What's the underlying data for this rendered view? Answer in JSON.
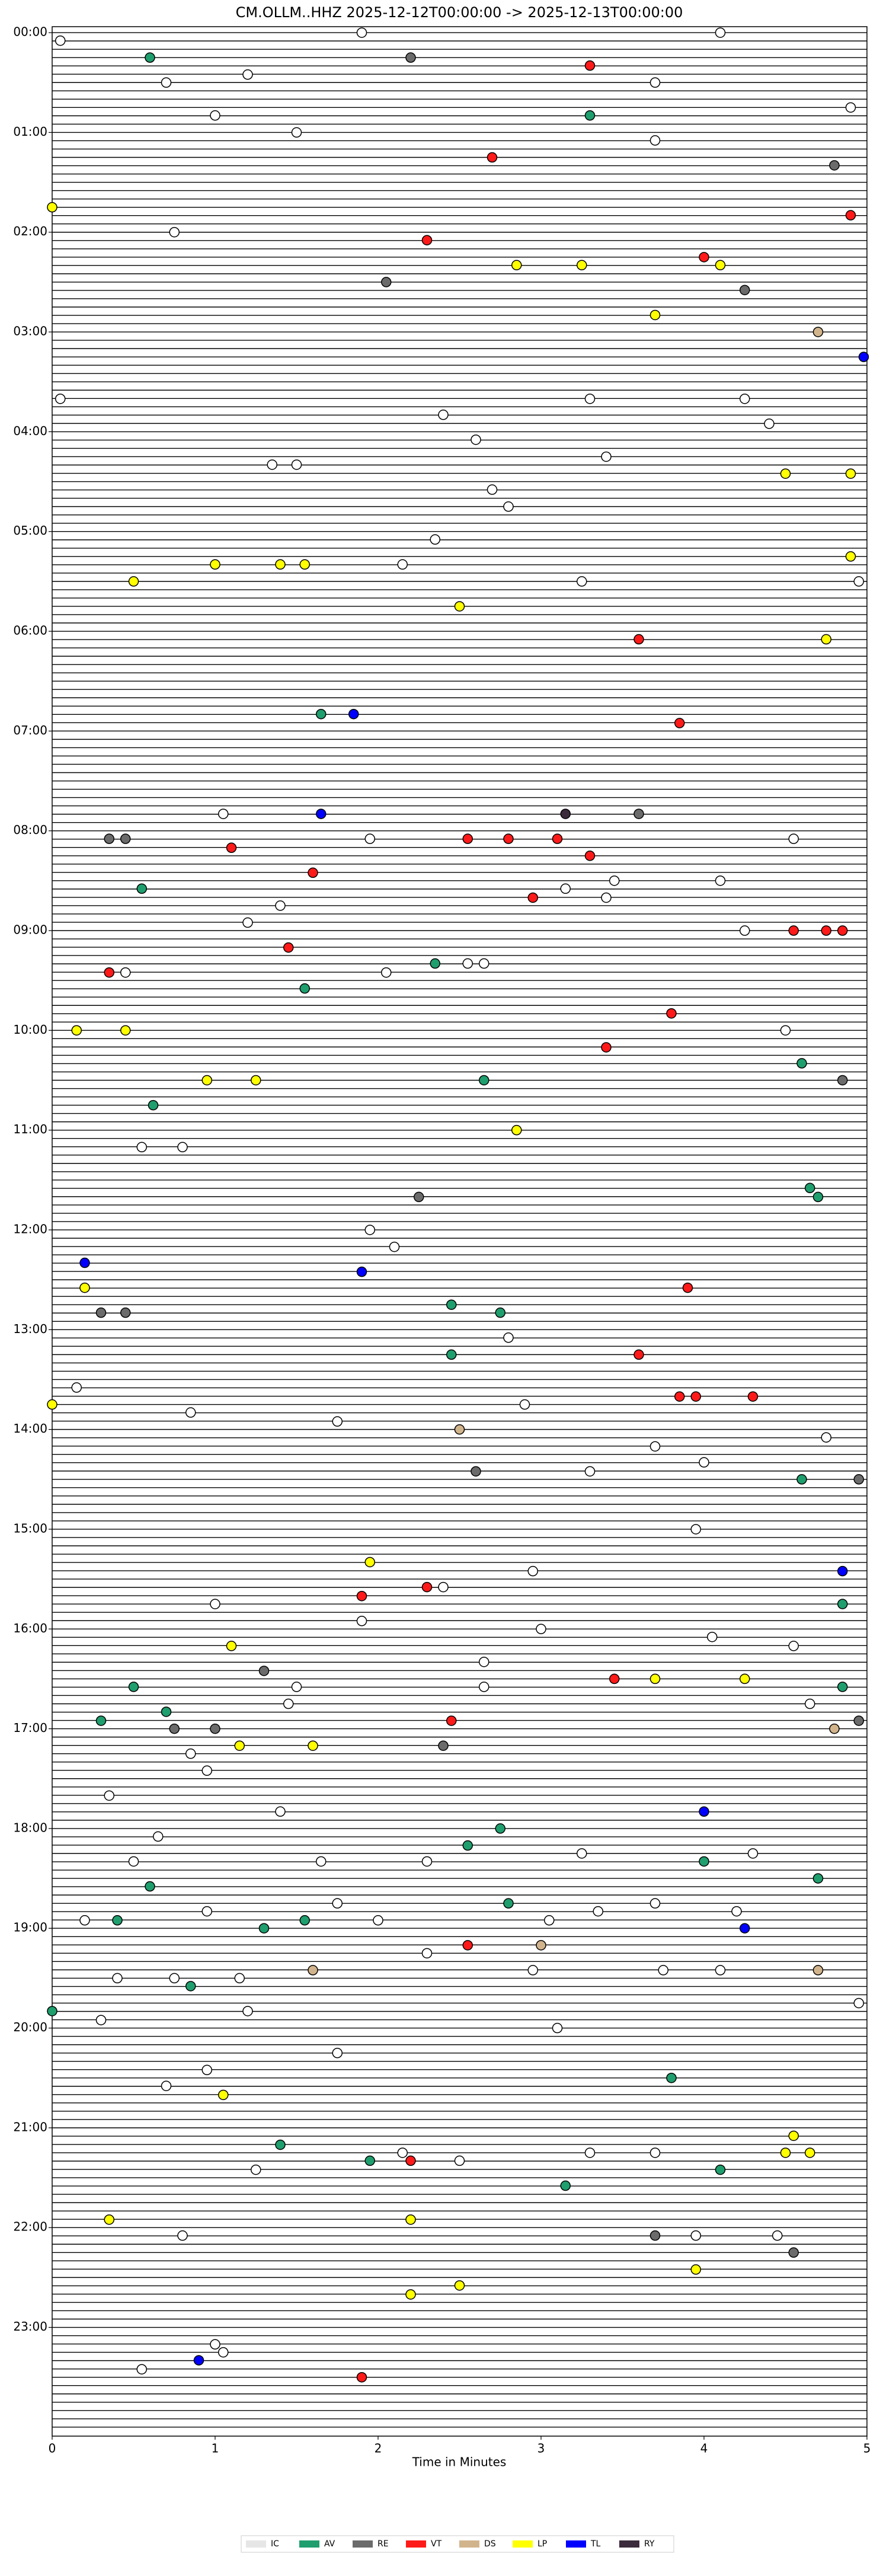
{
  "chart_data": {
    "type": "scatter",
    "title": "CM.OLLM..HHZ  2025-12-12T00:00:00 -> 2025-12-13T00:00:00",
    "xlabel": "Time in Minutes",
    "xlim": [
      0,
      5
    ],
    "xticks": [
      0,
      1,
      2,
      3,
      4,
      5
    ],
    "ylim": [
      -0.06,
      24.09
    ],
    "yticks": [
      {
        "value": 0,
        "label": "00:00"
      },
      {
        "value": 1,
        "label": "01:00"
      },
      {
        "value": 2,
        "label": "02:00"
      },
      {
        "value": 3,
        "label": "03:00"
      },
      {
        "value": 4,
        "label": "04:00"
      },
      {
        "value": 5,
        "label": "05:00"
      },
      {
        "value": 6,
        "label": "06:00"
      },
      {
        "value": 7,
        "label": "07:00"
      },
      {
        "value": 8,
        "label": "08:00"
      },
      {
        "value": 9,
        "label": "09:00"
      },
      {
        "value": 10,
        "label": "10:00"
      },
      {
        "value": 11,
        "label": "11:00"
      },
      {
        "value": 12,
        "label": "12:00"
      },
      {
        "value": 13,
        "label": "13:00"
      },
      {
        "value": 14,
        "label": "14:00"
      },
      {
        "value": 15,
        "label": "15:00"
      },
      {
        "value": 16,
        "label": "16:00"
      },
      {
        "value": 17,
        "label": "17:00"
      },
      {
        "value": 18,
        "label": "18:00"
      },
      {
        "value": 19,
        "label": "19:00"
      },
      {
        "value": 20,
        "label": "20:00"
      },
      {
        "value": 21,
        "label": "21:00"
      },
      {
        "value": 22,
        "label": "22:00"
      },
      {
        "value": 23,
        "label": "23:00"
      }
    ],
    "series": [
      {
        "name": "IC",
        "color": "#e6e6e6",
        "x": [
          0.05,
          1.9,
          4.1,
          0.7,
          1.2,
          3.7,
          1.0,
          1.5,
          3.7,
          4.9,
          0.75,
          2.4,
          3.3,
          0.05,
          4.25,
          4.4,
          2.6,
          1.35,
          1.5,
          3.4,
          2.7,
          2.8,
          2.35,
          2.15,
          3.25,
          4.95,
          1.95,
          1.05,
          4.55,
          3.45,
          4.1,
          3.15,
          3.4,
          1.4,
          1.2,
          4.25,
          2.05,
          2.55,
          2.65,
          0.45,
          4.5,
          0.8,
          0.55,
          2.1,
          1.95,
          2.8,
          0.15,
          0.85,
          1.75,
          2.9,
          3.7,
          4.75,
          3.3,
          4.0,
          3.95,
          2.95,
          1.0,
          2.4,
          1.9,
          3.0,
          4.05,
          4.55,
          2.65,
          1.5,
          2.65,
          4.65,
          1.45,
          0.85,
          0.95,
          1.4,
          0.35,
          0.65,
          0.5,
          1.65,
          2.3,
          3.25,
          4.3,
          0.2,
          0.95,
          1.75,
          2.0,
          3.05,
          3.35,
          3.7,
          4.2,
          2.3,
          2.95,
          3.75,
          4.1,
          0.4,
          0.75,
          1.15,
          4.95,
          0.3,
          1.2,
          1.75,
          0.7,
          0.95,
          3.1,
          2.15,
          3.3,
          3.7,
          2.5,
          1.25,
          0.8,
          3.95,
          4.45,
          1.0,
          1.05,
          0.55
        ],
        "y": [
          0.08,
          0.0,
          0.0,
          0.5,
          0.42,
          0.5,
          0.83,
          1.0,
          1.08,
          0.75,
          2.0,
          3.83,
          3.67,
          3.67,
          3.67,
          3.92,
          4.08,
          4.33,
          4.33,
          4.25,
          4.58,
          4.75,
          5.08,
          5.33,
          5.5,
          5.5,
          8.08,
          7.83,
          8.08,
          8.5,
          8.5,
          8.58,
          8.67,
          8.75,
          8.92,
          9.0,
          9.42,
          9.33,
          9.33,
          9.42,
          10.0,
          11.17,
          11.17,
          12.17,
          12.0,
          13.08,
          13.58,
          13.83,
          13.92,
          13.75,
          14.17,
          14.08,
          14.42,
          14.33,
          15.0,
          15.42,
          15.75,
          15.58,
          15.92,
          16.0,
          16.08,
          16.17,
          16.33,
          16.58,
          16.58,
          16.75,
          16.75,
          17.25,
          17.42,
          17.83,
          17.67,
          18.08,
          18.33,
          18.33,
          18.33,
          18.25,
          18.25,
          18.92,
          18.83,
          18.75,
          18.92,
          18.92,
          18.83,
          18.75,
          18.83,
          19.25,
          19.42,
          19.42,
          19.42,
          19.5,
          19.5,
          19.5,
          19.75,
          19.92,
          19.83,
          20.25,
          20.58,
          20.42,
          20.0,
          21.25,
          21.25,
          21.25,
          21.33,
          21.42,
          22.08,
          22.08,
          22.08,
          23.17,
          23.25,
          23.42
        ]
      },
      {
        "name": "AV",
        "color": "#1f9e6e",
        "x": [
          0.6,
          3.3,
          1.65,
          0.55,
          1.55,
          2.35,
          2.65,
          4.6,
          0.62,
          4.65,
          4.7,
          2.45,
          2.75,
          2.45,
          4.6,
          4.85,
          0.5,
          4.85,
          0.3,
          0.7,
          2.75,
          2.55,
          4.0,
          0.6,
          2.8,
          1.3,
          4.7,
          0.4,
          1.55,
          0.85,
          0.0,
          3.8,
          1.4,
          4.1,
          1.95,
          3.15
        ],
        "y": [
          0.25,
          0.83,
          6.83,
          8.58,
          9.58,
          9.33,
          10.5,
          10.33,
          10.75,
          11.58,
          11.67,
          12.75,
          12.83,
          13.25,
          14.5,
          15.75,
          16.58,
          16.58,
          16.92,
          16.83,
          18.0,
          18.17,
          18.33,
          18.58,
          18.75,
          19.0,
          18.5,
          18.92,
          18.92,
          19.58,
          19.83,
          20.5,
          21.17,
          21.42,
          21.33,
          21.58
        ]
      },
      {
        "name": "RE",
        "color": "#6b6b6b",
        "x": [
          2.2,
          4.25,
          2.05,
          4.8,
          0.35,
          0.45,
          3.6,
          2.25,
          0.3,
          0.45,
          4.85,
          2.6,
          1.3,
          0.75,
          1.0,
          2.4,
          4.95,
          4.55,
          3.7,
          4.95
        ],
        "y": [
          0.25,
          2.58,
          2.5,
          1.33,
          8.08,
          8.08,
          7.83,
          11.67,
          12.83,
          12.83,
          10.5,
          14.42,
          16.42,
          17.0,
          17.0,
          17.17,
          14.5,
          22.25,
          22.08,
          16.92
        ]
      },
      {
        "name": "VT",
        "color": "#ff1a1a",
        "x": [
          3.3,
          2.7,
          2.3,
          4.0,
          4.9,
          3.6,
          3.85,
          2.55,
          2.8,
          3.1,
          3.3,
          2.95,
          1.1,
          1.45,
          0.35,
          1.6,
          3.4,
          3.8,
          4.55,
          4.75,
          4.85,
          3.9,
          3.6,
          3.85,
          3.95,
          4.3,
          1.9,
          2.3,
          3.45,
          2.45,
          2.55,
          2.2,
          1.9
        ],
        "y": [
          0.33,
          1.25,
          2.08,
          2.25,
          1.83,
          6.08,
          6.92,
          8.08,
          8.08,
          8.08,
          8.25,
          8.67,
          8.17,
          9.17,
          9.42,
          8.42,
          10.17,
          9.83,
          9.0,
          9.0,
          9.0,
          12.58,
          13.25,
          13.67,
          13.67,
          13.67,
          15.67,
          15.58,
          16.5,
          16.92,
          19.17,
          21.33,
          23.5
        ]
      },
      {
        "name": "DS",
        "color": "#d2b48c",
        "x": [
          4.7,
          1.6,
          4.7,
          4.8,
          3.0,
          2.5
        ],
        "y": [
          3.0,
          19.42,
          19.42,
          17.0,
          19.17,
          14.0
        ]
      },
      {
        "name": "LP",
        "color": "#ffff00",
        "x": [
          2.85,
          3.25,
          4.1,
          3.7,
          0.0,
          4.5,
          4.9,
          4.9,
          1.0,
          1.4,
          1.55,
          0.5,
          2.5,
          4.75,
          0.15,
          0.45,
          0.95,
          1.25,
          2.85,
          0.2,
          0.0,
          1.95,
          1.1,
          3.7,
          4.25,
          1.15,
          1.6,
          1.05,
          0.35,
          2.2,
          4.55,
          4.5,
          4.65,
          3.95,
          2.2,
          2.5
        ],
        "y": [
          2.33,
          2.33,
          2.33,
          2.83,
          1.75,
          4.42,
          4.42,
          5.25,
          5.33,
          5.33,
          5.33,
          5.5,
          5.75,
          6.08,
          10.0,
          10.0,
          10.5,
          10.5,
          11.0,
          12.58,
          13.75,
          15.33,
          16.17,
          16.5,
          16.5,
          17.17,
          17.17,
          20.67,
          21.92,
          21.92,
          21.08,
          21.25,
          21.25,
          22.42,
          22.67,
          22.58
        ]
      },
      {
        "name": "TL",
        "color": "#0000ff",
        "x": [
          4.98,
          1.85,
          1.65,
          0.2,
          1.9,
          4.0,
          4.25,
          4.85,
          0.9
        ],
        "y": [
          3.25,
          6.83,
          7.83,
          12.33,
          12.42,
          17.83,
          19.0,
          15.42,
          23.33
        ]
      },
      {
        "name": "RY",
        "color": "#3b2a3b",
        "x": [
          3.15
        ],
        "y": [
          7.83
        ]
      }
    ]
  }
}
